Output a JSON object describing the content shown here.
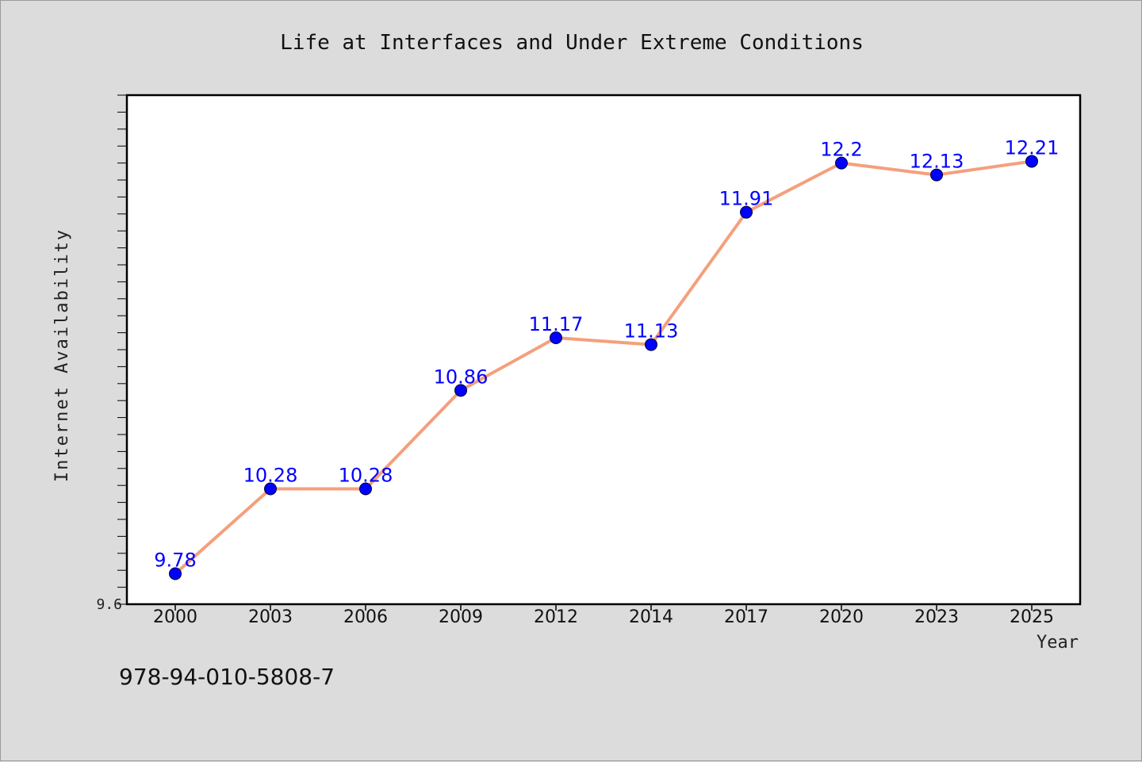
{
  "chart_data": {
    "type": "line",
    "title": "Life at Interfaces and Under Extreme Conditions",
    "xlabel": "Year",
    "ylabel": "Internet Availability",
    "categories": [
      "2000",
      "2003",
      "2006",
      "2009",
      "2012",
      "2014",
      "2017",
      "2020",
      "2023",
      "2025"
    ],
    "series": [
      {
        "values": [
          9.78,
          10.28,
          10.28,
          10.86,
          11.17,
          11.13,
          11.91,
          12.2,
          12.13,
          12.21
        ]
      }
    ],
    "data_labels": [
      "9.78",
      "10.28",
      "10.28",
      "10.86",
      "11.17",
      "11.13",
      "11.91",
      "12.2",
      "12.13",
      "12.21"
    ],
    "y_tick_labels": [
      "9.6"
    ],
    "ylim": [
      9.6,
      12.6
    ],
    "grid": false,
    "line_color": "#f4a07c",
    "marker_color": "#0000ff",
    "label_color": "#0000ff",
    "plot_background": "#ffffff",
    "page_background": "#dcdcdc"
  },
  "footer": {
    "isbn": "978-94-010-5808-7"
  }
}
